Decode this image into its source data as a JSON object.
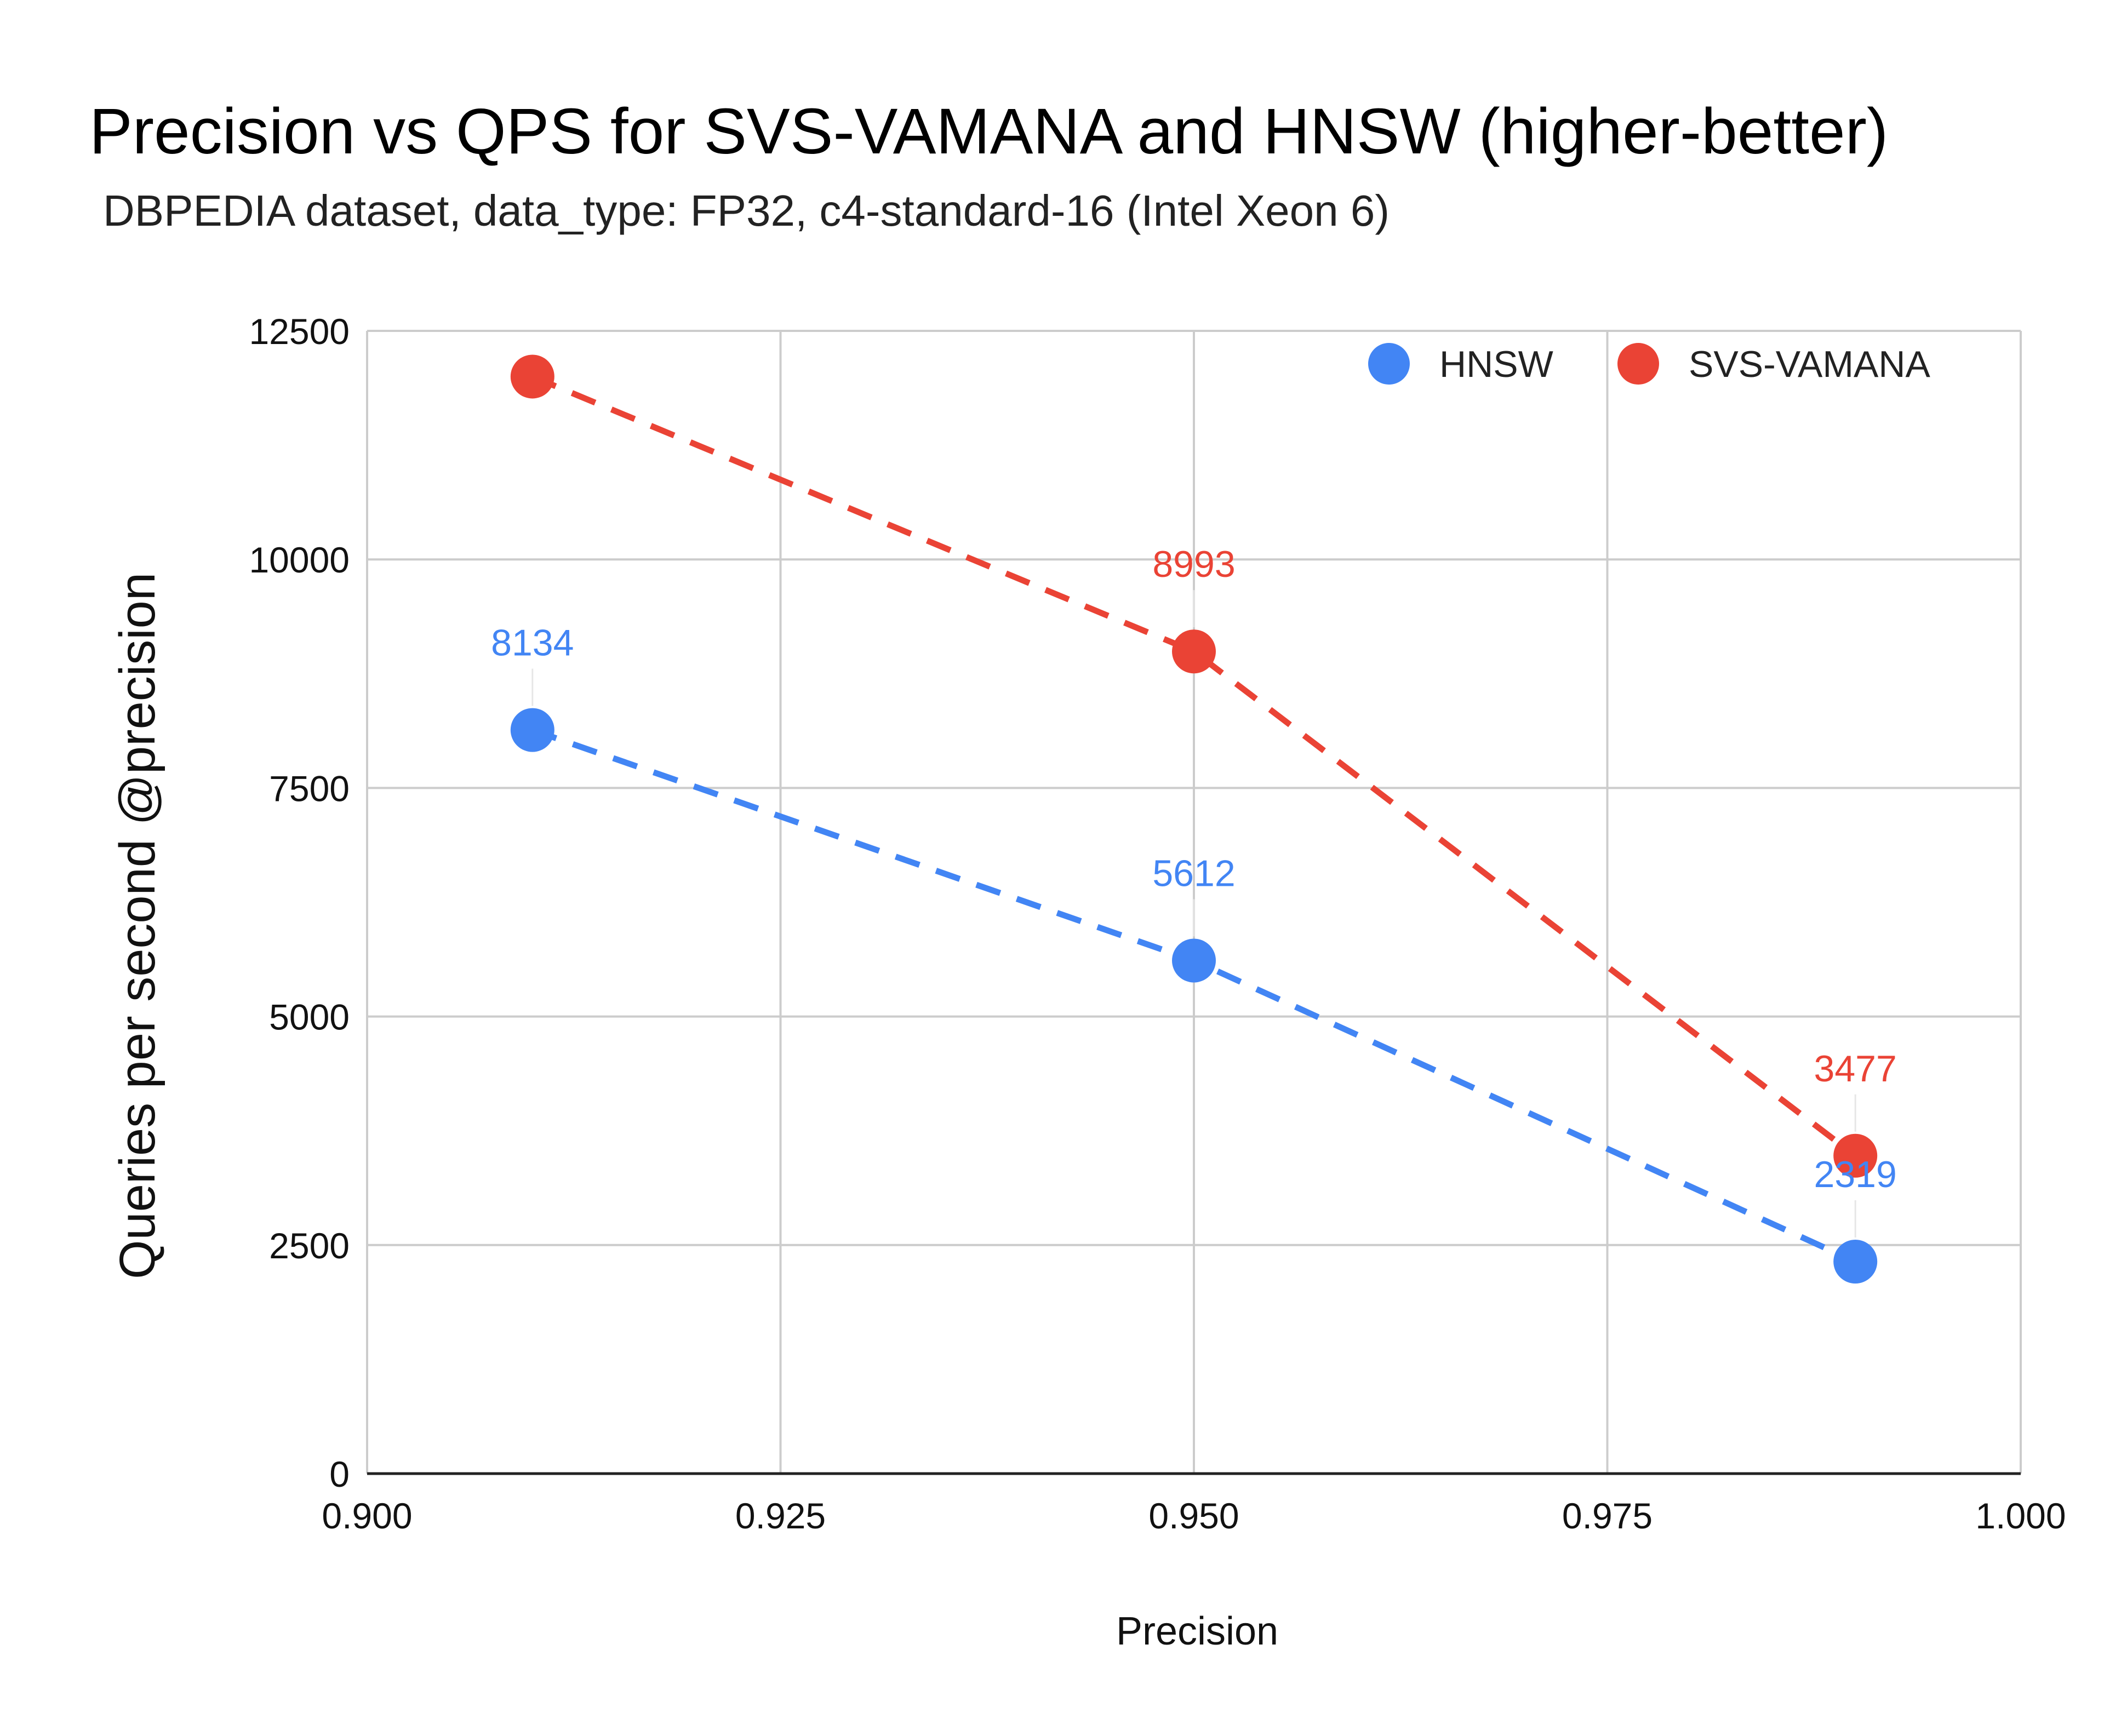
{
  "chart_data": {
    "type": "line",
    "title": "Precision vs QPS for SVS-VAMANA and HNSW (higher-better)",
    "subtitle": "DBPEDIA dataset, data_type: FP32, c4-standard-16 (Intel Xeon 6)",
    "xlabel": "Precision",
    "ylabel": "Queries per second @precision",
    "xlim": [
      0.9,
      1.0
    ],
    "ylim": [
      0,
      12500
    ],
    "xticks": [
      "0.900",
      "0.925",
      "0.950",
      "0.975",
      "1.000"
    ],
    "yticks": [
      "0",
      "2500",
      "5000",
      "7500",
      "10000",
      "12500"
    ],
    "grid": true,
    "legend_position": "top-right",
    "series": [
      {
        "name": "HNSW",
        "color": "#4285F4",
        "x": [
          0.91,
          0.95,
          0.99
        ],
        "y": [
          8134,
          5612,
          2319
        ],
        "labels": [
          "8134",
          "5612",
          "2319"
        ]
      },
      {
        "name": "SVS-VAMANA",
        "color": "#EA4335",
        "x": [
          0.91,
          0.95,
          0.99
        ],
        "y": [
          12000,
          8993,
          3477
        ],
        "labels": [
          "",
          "8993",
          "3477"
        ]
      }
    ]
  }
}
